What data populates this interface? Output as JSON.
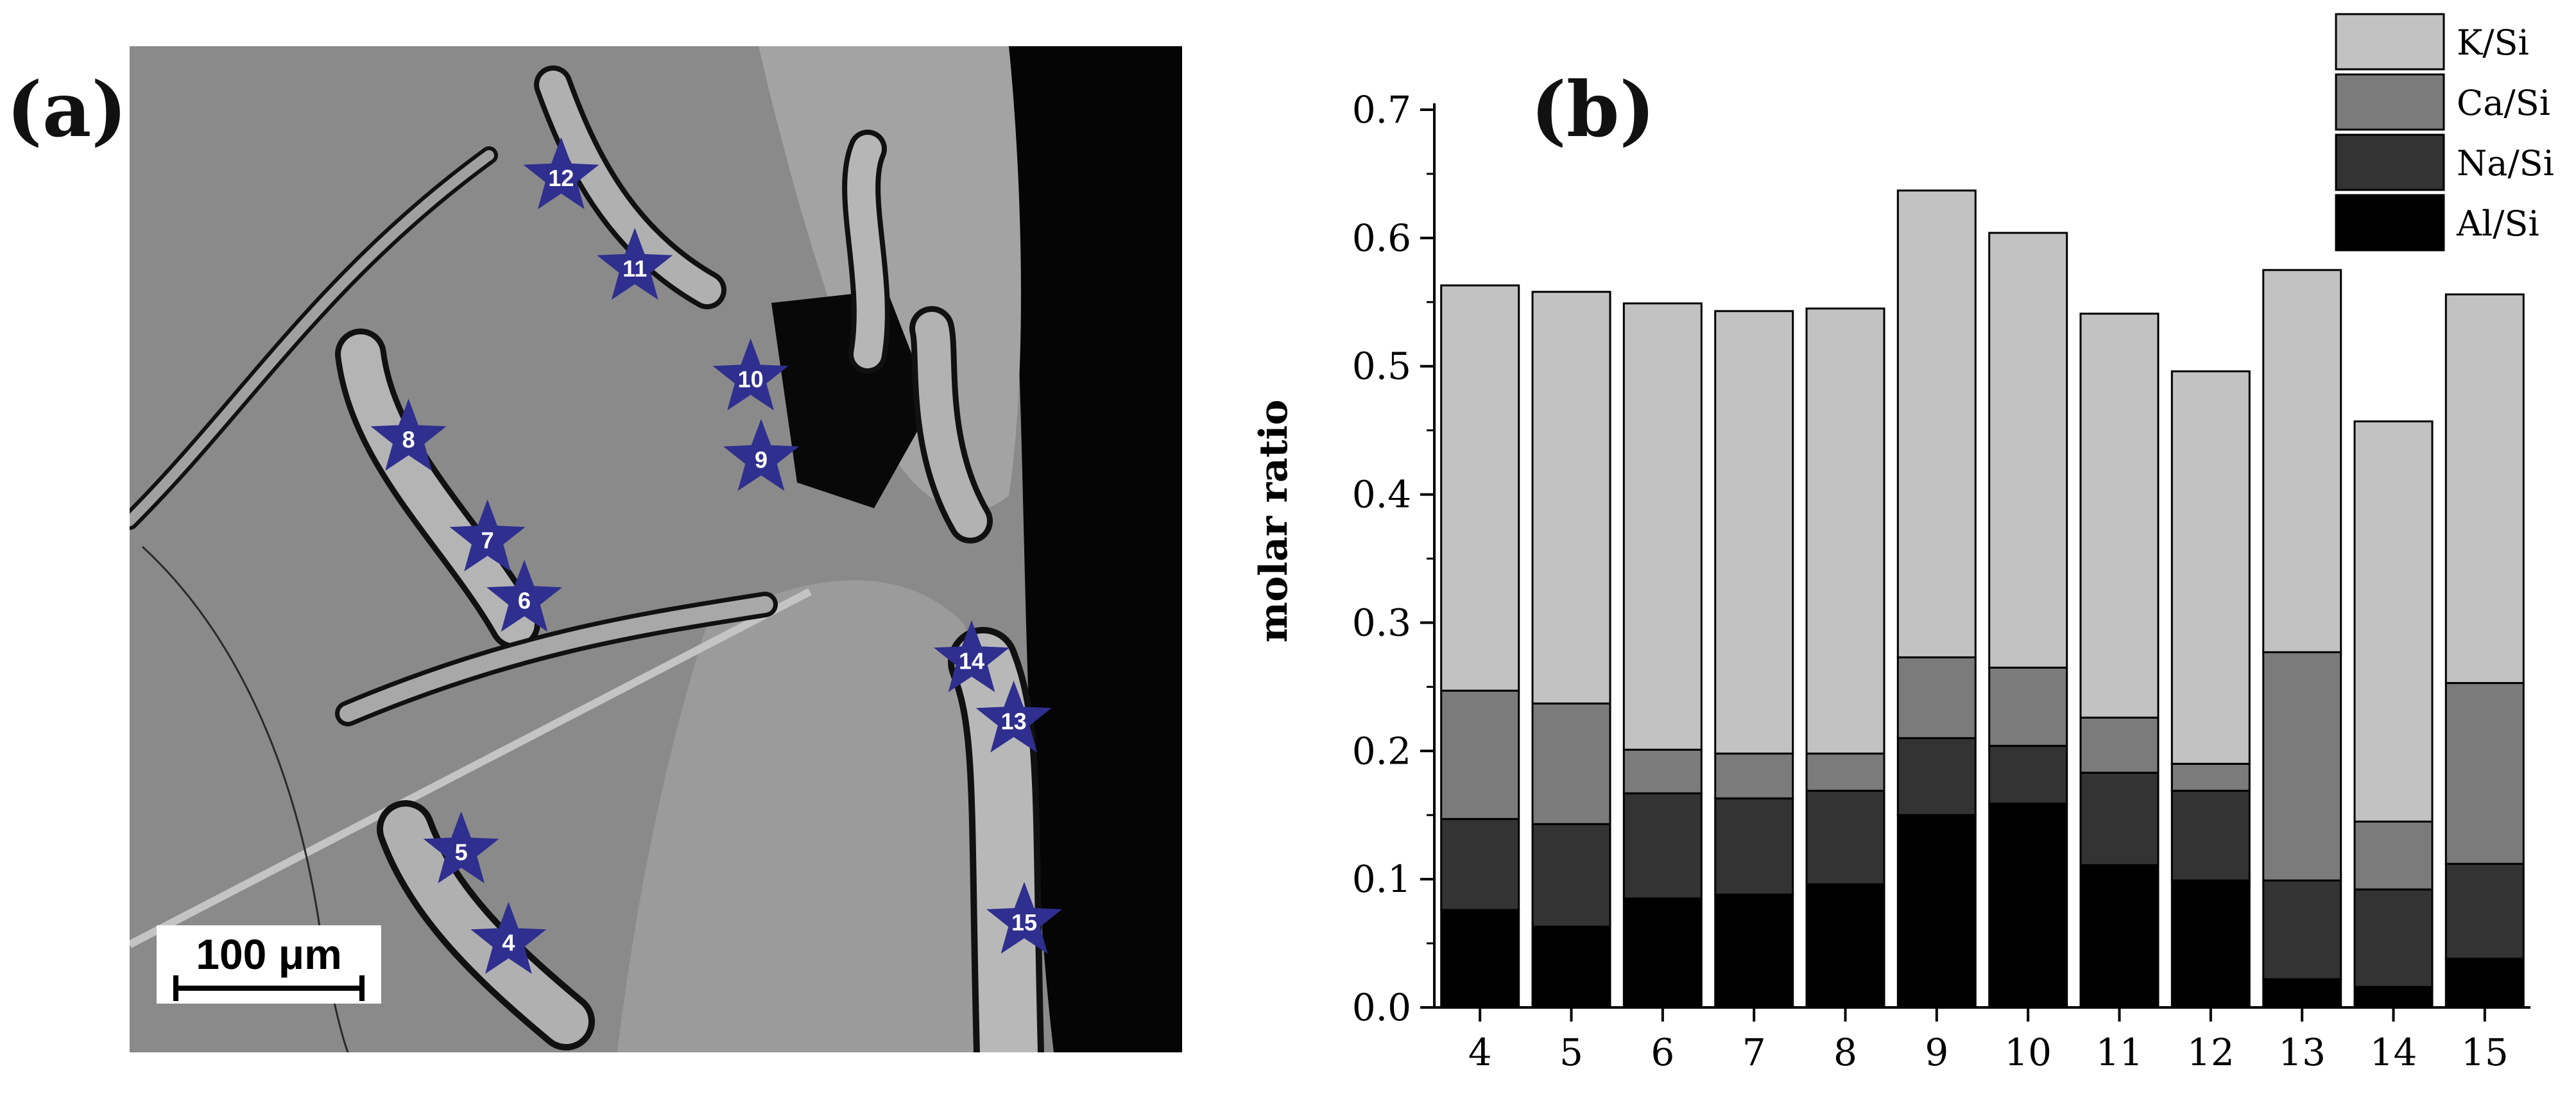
{
  "panels": {
    "a": {
      "label": "(a)",
      "scale_bar_text": "100 μm",
      "markers": [
        {
          "id": "12",
          "cx": 0.41,
          "cy": 0.13
        },
        {
          "id": "11",
          "cx": 0.48,
          "cy": 0.22
        },
        {
          "id": "10",
          "cx": 0.59,
          "cy": 0.33
        },
        {
          "id": "9",
          "cx": 0.6,
          "cy": 0.41
        },
        {
          "id": "8",
          "cx": 0.265,
          "cy": 0.39
        },
        {
          "id": "7",
          "cx": 0.34,
          "cy": 0.49
        },
        {
          "id": "6",
          "cx": 0.375,
          "cy": 0.55
        },
        {
          "id": "14",
          "cx": 0.8,
          "cy": 0.61
        },
        {
          "id": "13",
          "cx": 0.84,
          "cy": 0.67
        },
        {
          "id": "5",
          "cx": 0.315,
          "cy": 0.8
        },
        {
          "id": "4",
          "cx": 0.36,
          "cy": 0.89
        },
        {
          "id": "15",
          "cx": 0.85,
          "cy": 0.87
        }
      ],
      "marker_color": "#2f2f8f"
    },
    "b": {
      "label": "(b)"
    }
  },
  "chart_data": {
    "type": "bar",
    "stacked": true,
    "categories": [
      "4",
      "5",
      "6",
      "7",
      "8",
      "9",
      "10",
      "11",
      "12",
      "13",
      "14",
      "15"
    ],
    "series": [
      {
        "name": "Al/Si",
        "color": "#000000",
        "values": [
          0.076,
          0.063,
          0.085,
          0.088,
          0.096,
          0.15,
          0.159,
          0.111,
          0.099,
          0.022,
          0.016,
          0.038
        ]
      },
      {
        "name": "Na/Si",
        "color": "#333333",
        "values": [
          0.071,
          0.08,
          0.082,
          0.075,
          0.073,
          0.06,
          0.045,
          0.072,
          0.07,
          0.077,
          0.076,
          0.074
        ]
      },
      {
        "name": "Ca/Si",
        "color": "#7b7b7b",
        "values": [
          0.1,
          0.094,
          0.034,
          0.035,
          0.029,
          0.063,
          0.061,
          0.043,
          0.021,
          0.178,
          0.053,
          0.141
        ]
      },
      {
        "name": "K/Si",
        "color": "#c2c2c2",
        "values": [
          0.316,
          0.321,
          0.348,
          0.345,
          0.347,
          0.364,
          0.339,
          0.315,
          0.306,
          0.298,
          0.312,
          0.303
        ]
      }
    ],
    "xlabel": "",
    "ylabel": "molar ratio",
    "ylim": [
      0,
      0.7
    ],
    "yticks": [
      "0.0",
      "0.1",
      "0.2",
      "0.3",
      "0.4",
      "0.5",
      "0.6",
      "0.7"
    ],
    "grid": false,
    "legend_position": "top-right",
    "legend_order": [
      "K/Si",
      "Ca/Si",
      "Na/Si",
      "Al/Si"
    ]
  }
}
